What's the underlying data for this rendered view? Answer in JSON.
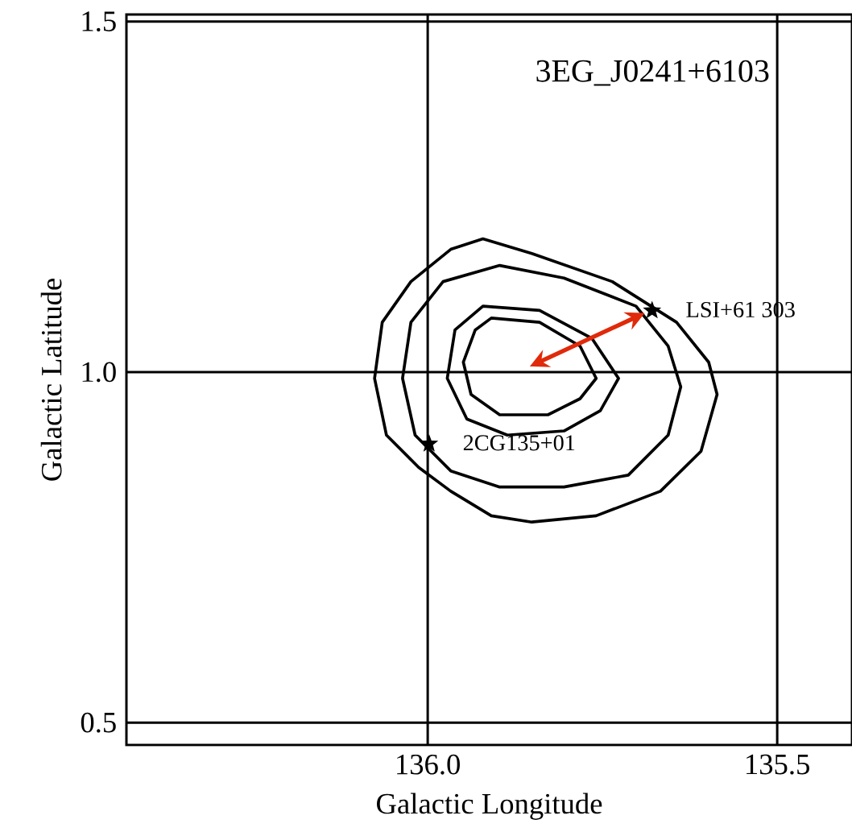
{
  "chart_data": {
    "type": "scatter",
    "title": "3EG_J0241+6103",
    "xlabel": "Galactic Longitude",
    "ylabel": "Galactic Latitude",
    "xlim": [
      136.431,
      135.393
    ],
    "ylim": [
      0.468,
      1.51
    ],
    "xticks": [
      {
        "value": 136.0,
        "label": "136.0"
      },
      {
        "value": 135.5,
        "label": "135.5"
      }
    ],
    "yticks": [
      {
        "value": 0.5,
        "label": "0.5"
      },
      {
        "value": 1.0,
        "label": "1.0"
      },
      {
        "value": 1.5,
        "label": "1.5"
      }
    ],
    "grid": true,
    "marker": "star",
    "series": [
      {
        "color": "#000000",
        "x": [
          135.679,
          135.998
        ],
        "values": [
          1.089,
          0.899
        ]
      }
    ],
    "annotations": [
      {
        "text": "LSI+61 303",
        "x": 135.679,
        "y": 1.089
      },
      {
        "text": "2CG135+01",
        "x": 135.998,
        "y": 0.899
      }
    ]
  }
}
